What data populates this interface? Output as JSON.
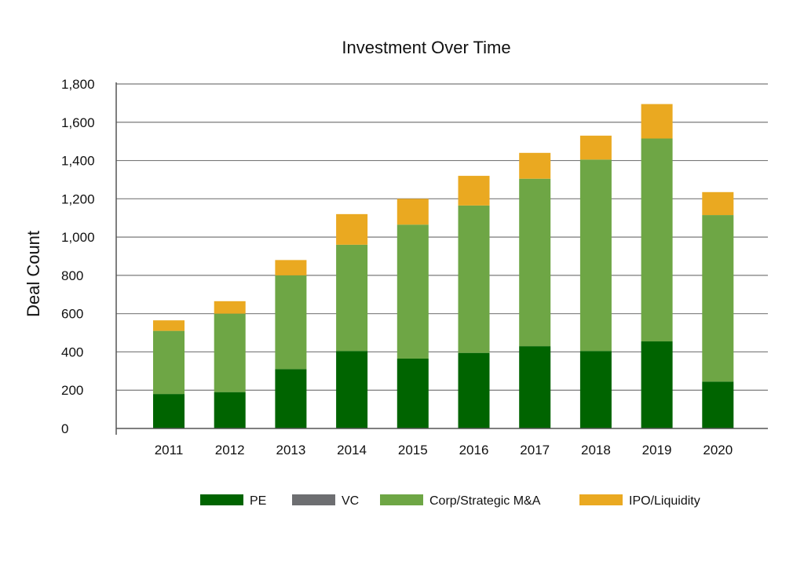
{
  "chart_data": {
    "type": "bar",
    "stacked": true,
    "title": "Investment Over Time",
    "xlabel": "",
    "ylabel": "Deal Count",
    "ylim": [
      0,
      1800
    ],
    "yticks": [
      0,
      200,
      400,
      600,
      800,
      1000,
      1200,
      1400,
      1600,
      1800
    ],
    "ytick_labels": [
      "0",
      "200",
      "400",
      "600",
      "800",
      "1,000",
      "1,200",
      "1,400",
      "1,600",
      "1,800"
    ],
    "grid": true,
    "legend_position": "bottom",
    "categories": [
      "2011",
      "2012",
      "2013",
      "2014",
      "2015",
      "2016",
      "2017",
      "2018",
      "2019",
      "2020"
    ],
    "series": [
      {
        "name": "PE",
        "color": "#006400",
        "values": [
          180,
          190,
          310,
          405,
          365,
          395,
          430,
          405,
          455,
          245
        ]
      },
      {
        "name": "VC",
        "color": "#6d6e71",
        "values": [
          0,
          0,
          0,
          0,
          0,
          0,
          0,
          0,
          0,
          0
        ]
      },
      {
        "name": "Corp/Strategic M&A",
        "color": "#6ea645",
        "values": [
          330,
          410,
          490,
          555,
          700,
          770,
          875,
          1000,
          1060,
          870
        ]
      },
      {
        "name": "IPO/Liquidity",
        "color": "#eaa921",
        "values": [
          55,
          65,
          80,
          160,
          135,
          155,
          135,
          125,
          180,
          120
        ]
      }
    ]
  }
}
